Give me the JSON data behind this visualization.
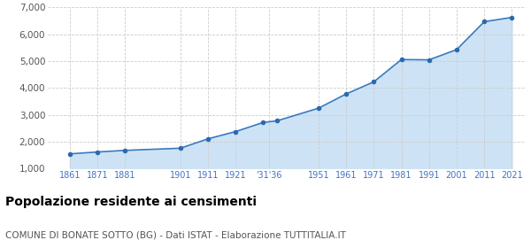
{
  "years": [
    1861,
    1871,
    1881,
    1901,
    1911,
    1921,
    1931,
    1936,
    1951,
    1961,
    1971,
    1981,
    1991,
    2001,
    2011,
    2021
  ],
  "population": [
    1550,
    1620,
    1680,
    1760,
    2110,
    2380,
    2720,
    2780,
    3250,
    3780,
    4230,
    5060,
    5050,
    5430,
    6470,
    6630
  ],
  "xtick_positions": [
    1861,
    1871,
    1881,
    1901,
    1911,
    1921,
    1933,
    1951,
    1961,
    1971,
    1981,
    1991,
    2001,
    2011,
    2021
  ],
  "xtick_labels": [
    "1861",
    "1871",
    "1881",
    "1901",
    "1911",
    "1921",
    "'31'36",
    "1951",
    "1961",
    "1971",
    "1981",
    "1991",
    "2001",
    "2011",
    "2021"
  ],
  "xlim": [
    1853,
    2026
  ],
  "ylim": [
    1000,
    7000
  ],
  "yticks": [
    1000,
    2000,
    3000,
    4000,
    5000,
    6000,
    7000
  ],
  "ytick_labels": [
    "1,000",
    "2,000",
    "3,000",
    "4,000",
    "5,000",
    "6,000",
    "7,000"
  ],
  "line_color": "#3a7abf",
  "fill_color": "#cde3f5",
  "marker_color": "#2a6aaf",
  "grid_color": "#cccccc",
  "bg_color": "#ffffff",
  "title": "Popolazione residente ai censimenti",
  "subtitle": "COMUNE DI BONATE SOTTO (BG) - Dati ISTAT - Elaborazione TUTTITALIA.IT",
  "title_fontsize": 10,
  "subtitle_fontsize": 7.5,
  "xlabel_color": "#4472c4",
  "ylabel_color": "#555555"
}
